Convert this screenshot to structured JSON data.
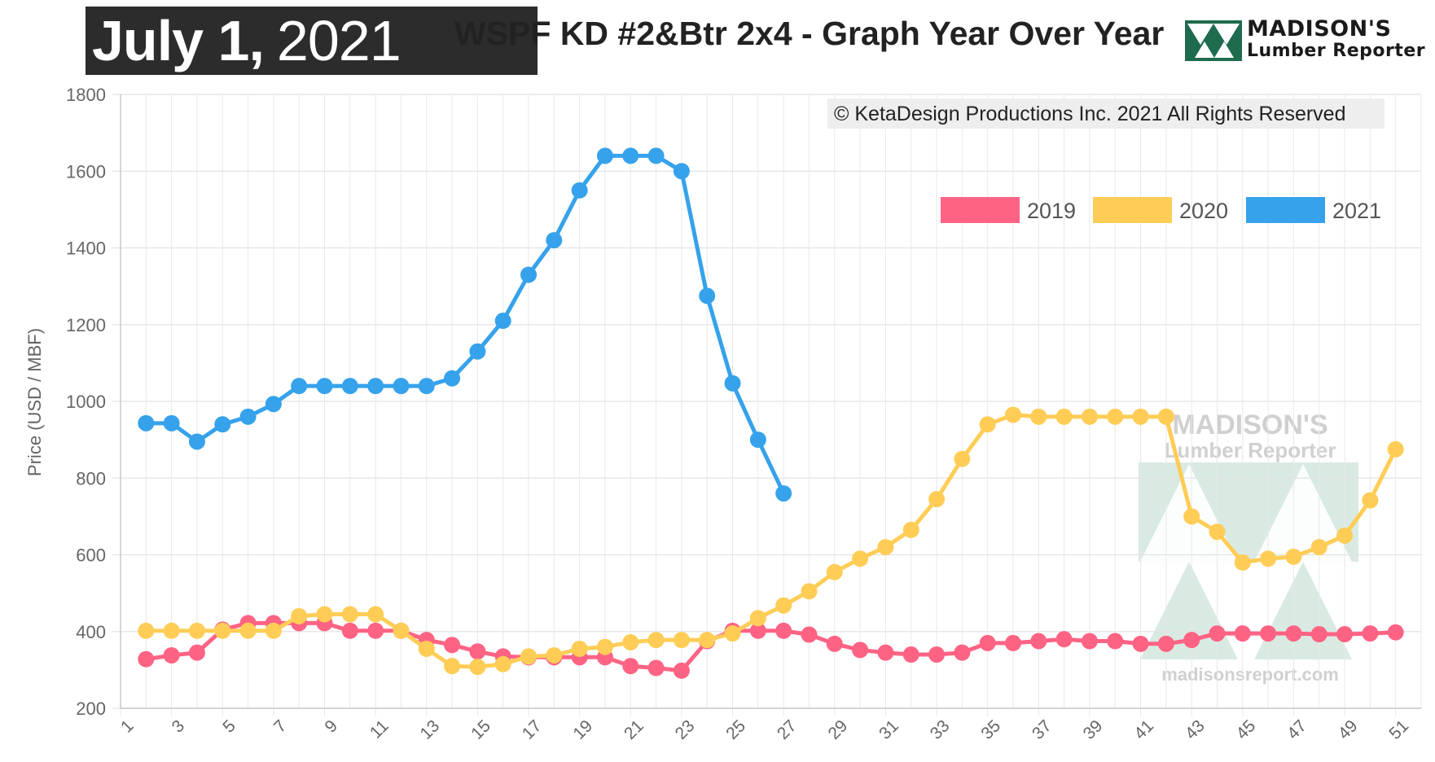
{
  "header": {
    "date_bold": "July 1,",
    "date_light": "2021",
    "title": "WSPF KD #2&Btr 2x4 - Graph Year Over Year",
    "logo_line1": "MADISON'S",
    "logo_line2": "Lumber Reporter"
  },
  "copyright": "© KetaDesign Productions Inc. 2021 All Rights Reserved",
  "watermark": {
    "line1": "MADISON'S",
    "line2": "Lumber Reporter",
    "url": "madisonsreport.com"
  },
  "colors": {
    "series_2019": "#ff6384",
    "series_2020": "#ffcd56",
    "series_2021": "#36a2eb",
    "logo_green": "#1f6b4e",
    "watermark_green": "#b9d8cc"
  },
  "chart_data": {
    "type": "line",
    "ylabel": "Price (USD / MBF)",
    "xlabel": "",
    "ylim": [
      200,
      1800
    ],
    "yticks": [
      200,
      400,
      600,
      800,
      1000,
      1200,
      1400,
      1600,
      1800
    ],
    "xlim": [
      1,
      52
    ],
    "xticks": [
      1,
      3,
      5,
      7,
      9,
      11,
      13,
      15,
      17,
      19,
      21,
      23,
      25,
      27,
      29,
      31,
      33,
      35,
      37,
      39,
      41,
      43,
      45,
      47,
      49,
      51
    ],
    "grid": true,
    "legend_position": "top-right",
    "series": [
      {
        "name": "2019",
        "x": [
          2,
          3,
          4,
          5,
          6,
          7,
          8,
          9,
          10,
          11,
          12,
          13,
          14,
          15,
          16,
          17,
          18,
          19,
          20,
          21,
          22,
          23,
          24,
          25,
          26,
          27,
          28,
          29,
          30,
          31,
          32,
          33,
          34,
          35,
          36,
          37,
          38,
          39,
          40,
          41,
          42,
          43,
          44,
          45,
          46,
          47,
          48,
          49,
          50,
          51
        ],
        "values": [
          328,
          338,
          345,
          405,
          422,
          422,
          422,
          422,
          402,
          402,
          402,
          378,
          365,
          348,
          335,
          333,
          333,
          333,
          333,
          310,
          305,
          298,
          375,
          402,
          402,
          402,
          392,
          368,
          352,
          345,
          340,
          340,
          345,
          370,
          370,
          375,
          380,
          375,
          375,
          368,
          368,
          378,
          395,
          395,
          395,
          395,
          393,
          393,
          395,
          398
        ]
      },
      {
        "name": "2020",
        "x": [
          2,
          3,
          4,
          5,
          6,
          7,
          8,
          9,
          10,
          11,
          12,
          13,
          14,
          15,
          16,
          17,
          18,
          19,
          20,
          21,
          22,
          23,
          24,
          25,
          26,
          27,
          28,
          29,
          30,
          31,
          32,
          33,
          34,
          35,
          36,
          37,
          38,
          39,
          40,
          41,
          42,
          43,
          44,
          45,
          46,
          47,
          48,
          49,
          50,
          51
        ],
        "values": [
          402,
          402,
          402,
          402,
          402,
          402,
          440,
          445,
          445,
          445,
          402,
          355,
          310,
          308,
          315,
          335,
          338,
          355,
          360,
          372,
          378,
          378,
          378,
          395,
          435,
          468,
          505,
          555,
          590,
          620,
          665,
          745,
          850,
          940,
          965,
          960,
          960,
          960,
          960,
          960,
          960,
          700,
          660,
          580,
          590,
          595,
          620,
          650,
          742,
          875
        ]
      },
      {
        "name": "2021",
        "x": [
          2,
          3,
          4,
          5,
          6,
          7,
          8,
          9,
          10,
          11,
          12,
          13,
          14,
          15,
          16,
          17,
          18,
          19,
          20,
          21,
          22,
          23,
          24,
          25,
          26,
          27
        ],
        "values": [
          943,
          943,
          895,
          940,
          960,
          993,
          1040,
          1040,
          1040,
          1040,
          1040,
          1040,
          1060,
          1130,
          1210,
          1330,
          1420,
          1550,
          1640,
          1640,
          1640,
          1600,
          1275,
          1047,
          900,
          760
        ]
      }
    ]
  }
}
